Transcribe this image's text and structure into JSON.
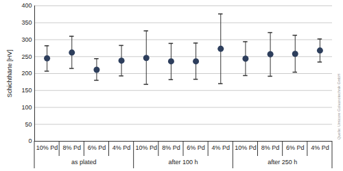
{
  "chart_data": {
    "type": "scatter",
    "y_label": "Schichthärte [HV]",
    "source": "Quelle: Umicore Galvanotechnik GmbH",
    "categories": [
      "10% Pd",
      "8% Pd",
      "6% Pd",
      "4% Pd",
      "10% Pd",
      "8% Pd",
      "6% Pd",
      "4% Pd",
      "10% Pd",
      "8% Pd",
      "6% Pd",
      "4% Pd"
    ],
    "groups": [
      "as plated",
      "as plated",
      "as plated",
      "as plated",
      "after 100 h",
      "after 100 h",
      "after 100 h",
      "after 100 h",
      "after 250 h",
      "after 250 h",
      "after 250 h",
      "after 250 h"
    ],
    "values": [
      245,
      262,
      211,
      238,
      246,
      236,
      236,
      273,
      244,
      257,
      258,
      268
    ],
    "error_low": [
      207,
      215,
      180,
      193,
      168,
      182,
      183,
      170,
      194,
      192,
      204,
      234
    ],
    "error_high": [
      282,
      310,
      244,
      283,
      326,
      289,
      290,
      376,
      294,
      321,
      313,
      302
    ],
    "color": "#2d3e5c",
    "marker": "circle",
    "ylim": [
      0,
      400
    ],
    "yticks": [
      0,
      50,
      100,
      150,
      200,
      250,
      300,
      350,
      400
    ],
    "grid": true
  }
}
